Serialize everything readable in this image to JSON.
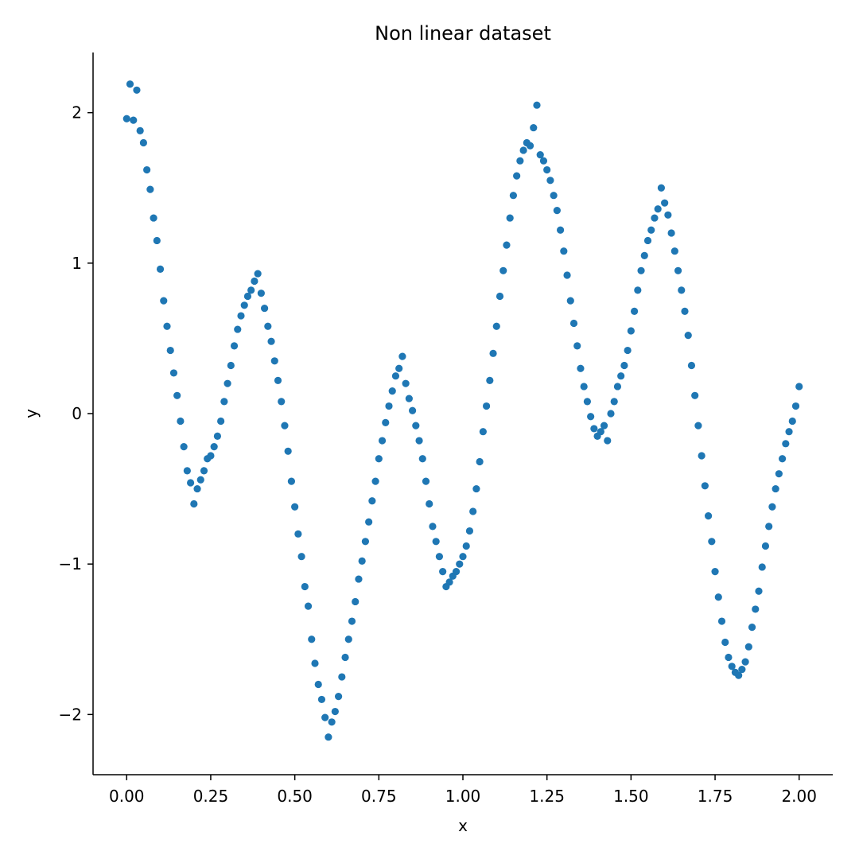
{
  "chart_data": {
    "type": "scatter",
    "title": "Non linear dataset",
    "xlabel": "x",
    "ylabel": "y",
    "xlim": [
      -0.1,
      2.1
    ],
    "ylim": [
      -2.4,
      2.4
    ],
    "xticks": [
      0.0,
      0.25,
      0.5,
      0.75,
      1.0,
      1.25,
      1.5,
      1.75,
      2.0
    ],
    "xtick_labels": [
      "0.00",
      "0.25",
      "0.50",
      "0.75",
      "1.00",
      "1.25",
      "1.50",
      "1.75",
      "2.00"
    ],
    "yticks": [
      -2,
      -1,
      0,
      1,
      2
    ],
    "ytick_labels": [
      "−2",
      "−1",
      "0",
      "1",
      "2"
    ],
    "grid": false,
    "legend": "none",
    "marker_color": "#1f77b4",
    "series": [
      {
        "points": [
          [
            0.0,
            1.96
          ],
          [
            0.01,
            2.19
          ],
          [
            0.02,
            1.95
          ],
          [
            0.03,
            2.15
          ],
          [
            0.04,
            1.88
          ],
          [
            0.05,
            1.8
          ],
          [
            0.06,
            1.62
          ],
          [
            0.07,
            1.49
          ],
          [
            0.08,
            1.3
          ],
          [
            0.09,
            1.15
          ],
          [
            0.1,
            0.96
          ],
          [
            0.11,
            0.75
          ],
          [
            0.12,
            0.58
          ],
          [
            0.13,
            0.42
          ],
          [
            0.14,
            0.27
          ],
          [
            0.15,
            0.12
          ],
          [
            0.16,
            -0.05
          ],
          [
            0.17,
            -0.22
          ],
          [
            0.18,
            -0.38
          ],
          [
            0.19,
            -0.46
          ],
          [
            0.2,
            -0.6
          ],
          [
            0.21,
            -0.5
          ],
          [
            0.22,
            -0.44
          ],
          [
            0.23,
            -0.38
          ],
          [
            0.24,
            -0.3
          ],
          [
            0.25,
            -0.28
          ],
          [
            0.26,
            -0.22
          ],
          [
            0.27,
            -0.15
          ],
          [
            0.28,
            -0.05
          ],
          [
            0.29,
            0.08
          ],
          [
            0.3,
            0.2
          ],
          [
            0.31,
            0.32
          ],
          [
            0.32,
            0.45
          ],
          [
            0.33,
            0.56
          ],
          [
            0.34,
            0.65
          ],
          [
            0.35,
            0.72
          ],
          [
            0.36,
            0.78
          ],
          [
            0.37,
            0.82
          ],
          [
            0.38,
            0.88
          ],
          [
            0.39,
            0.93
          ],
          [
            0.4,
            0.8
          ],
          [
            0.41,
            0.7
          ],
          [
            0.42,
            0.58
          ],
          [
            0.43,
            0.48
          ],
          [
            0.44,
            0.35
          ],
          [
            0.45,
            0.22
          ],
          [
            0.46,
            0.08
          ],
          [
            0.47,
            -0.08
          ],
          [
            0.48,
            -0.25
          ],
          [
            0.49,
            -0.45
          ],
          [
            0.5,
            -0.62
          ],
          [
            0.51,
            -0.8
          ],
          [
            0.52,
            -0.95
          ],
          [
            0.53,
            -1.15
          ],
          [
            0.54,
            -1.28
          ],
          [
            0.55,
            -1.5
          ],
          [
            0.56,
            -1.66
          ],
          [
            0.57,
            -1.8
          ],
          [
            0.58,
            -1.9
          ],
          [
            0.59,
            -2.02
          ],
          [
            0.6,
            -2.15
          ],
          [
            0.61,
            -2.05
          ],
          [
            0.62,
            -1.98
          ],
          [
            0.63,
            -1.88
          ],
          [
            0.64,
            -1.75
          ],
          [
            0.65,
            -1.62
          ],
          [
            0.66,
            -1.5
          ],
          [
            0.67,
            -1.38
          ],
          [
            0.68,
            -1.25
          ],
          [
            0.69,
            -1.1
          ],
          [
            0.7,
            -0.98
          ],
          [
            0.71,
            -0.85
          ],
          [
            0.72,
            -0.72
          ],
          [
            0.73,
            -0.58
          ],
          [
            0.74,
            -0.45
          ],
          [
            0.75,
            -0.3
          ],
          [
            0.76,
            -0.18
          ],
          [
            0.77,
            -0.06
          ],
          [
            0.78,
            0.05
          ],
          [
            0.79,
            0.15
          ],
          [
            0.8,
            0.25
          ],
          [
            0.81,
            0.3
          ],
          [
            0.82,
            0.38
          ],
          [
            0.83,
            0.2
          ],
          [
            0.84,
            0.1
          ],
          [
            0.85,
            0.02
          ],
          [
            0.86,
            -0.08
          ],
          [
            0.87,
            -0.18
          ],
          [
            0.88,
            -0.3
          ],
          [
            0.89,
            -0.45
          ],
          [
            0.9,
            -0.6
          ],
          [
            0.91,
            -0.75
          ],
          [
            0.92,
            -0.85
          ],
          [
            0.93,
            -0.95
          ],
          [
            0.94,
            -1.05
          ],
          [
            0.95,
            -1.15
          ],
          [
            0.96,
            -1.12
          ],
          [
            0.97,
            -1.08
          ],
          [
            0.98,
            -1.05
          ],
          [
            0.99,
            -1.0
          ],
          [
            1.0,
            -0.95
          ],
          [
            1.01,
            -0.88
          ],
          [
            1.02,
            -0.78
          ],
          [
            1.03,
            -0.65
          ],
          [
            1.04,
            -0.5
          ],
          [
            1.05,
            -0.32
          ],
          [
            1.06,
            -0.12
          ],
          [
            1.07,
            0.05
          ],
          [
            1.08,
            0.22
          ],
          [
            1.09,
            0.4
          ],
          [
            1.1,
            0.58
          ],
          [
            1.11,
            0.78
          ],
          [
            1.12,
            0.95
          ],
          [
            1.13,
            1.12
          ],
          [
            1.14,
            1.3
          ],
          [
            1.15,
            1.45
          ],
          [
            1.16,
            1.58
          ],
          [
            1.17,
            1.68
          ],
          [
            1.18,
            1.75
          ],
          [
            1.19,
            1.8
          ],
          [
            1.2,
            1.78
          ],
          [
            1.21,
            1.9
          ],
          [
            1.22,
            2.05
          ],
          [
            1.23,
            1.72
          ],
          [
            1.24,
            1.68
          ],
          [
            1.25,
            1.62
          ],
          [
            1.26,
            1.55
          ],
          [
            1.27,
            1.45
          ],
          [
            1.28,
            1.35
          ],
          [
            1.29,
            1.22
          ],
          [
            1.3,
            1.08
          ],
          [
            1.31,
            0.92
          ],
          [
            1.32,
            0.75
          ],
          [
            1.33,
            0.6
          ],
          [
            1.34,
            0.45
          ],
          [
            1.35,
            0.3
          ],
          [
            1.36,
            0.18
          ],
          [
            1.37,
            0.08
          ],
          [
            1.38,
            -0.02
          ],
          [
            1.39,
            -0.1
          ],
          [
            1.4,
            -0.15
          ],
          [
            1.41,
            -0.12
          ],
          [
            1.42,
            -0.08
          ],
          [
            1.43,
            -0.18
          ],
          [
            1.44,
            0.0
          ],
          [
            1.45,
            0.08
          ],
          [
            1.46,
            0.18
          ],
          [
            1.47,
            0.25
          ],
          [
            1.48,
            0.32
          ],
          [
            1.49,
            0.42
          ],
          [
            1.5,
            0.55
          ],
          [
            1.51,
            0.68
          ],
          [
            1.52,
            0.82
          ],
          [
            1.53,
            0.95
          ],
          [
            1.54,
            1.05
          ],
          [
            1.55,
            1.15
          ],
          [
            1.56,
            1.22
          ],
          [
            1.57,
            1.3
          ],
          [
            1.58,
            1.36
          ],
          [
            1.59,
            1.5
          ],
          [
            1.6,
            1.4
          ],
          [
            1.61,
            1.32
          ],
          [
            1.62,
            1.2
          ],
          [
            1.63,
            1.08
          ],
          [
            1.64,
            0.95
          ],
          [
            1.65,
            0.82
          ],
          [
            1.66,
            0.68
          ],
          [
            1.67,
            0.52
          ],
          [
            1.68,
            0.32
          ],
          [
            1.69,
            0.12
          ],
          [
            1.7,
            -0.08
          ],
          [
            1.71,
            -0.28
          ],
          [
            1.72,
            -0.48
          ],
          [
            1.73,
            -0.68
          ],
          [
            1.74,
            -0.85
          ],
          [
            1.75,
            -1.05
          ],
          [
            1.76,
            -1.22
          ],
          [
            1.77,
            -1.38
          ],
          [
            1.78,
            -1.52
          ],
          [
            1.79,
            -1.62
          ],
          [
            1.8,
            -1.68
          ],
          [
            1.81,
            -1.72
          ],
          [
            1.82,
            -1.74
          ],
          [
            1.83,
            -1.7
          ],
          [
            1.84,
            -1.65
          ],
          [
            1.85,
            -1.55
          ],
          [
            1.86,
            -1.42
          ],
          [
            1.87,
            -1.3
          ],
          [
            1.88,
            -1.18
          ],
          [
            1.89,
            -1.02
          ],
          [
            1.9,
            -0.88
          ],
          [
            1.91,
            -0.75
          ],
          [
            1.92,
            -0.62
          ],
          [
            1.93,
            -0.5
          ],
          [
            1.94,
            -0.4
          ],
          [
            1.95,
            -0.3
          ],
          [
            1.96,
            -0.2
          ],
          [
            1.97,
            -0.12
          ],
          [
            1.98,
            -0.05
          ],
          [
            1.99,
            0.05
          ],
          [
            2.0,
            0.18
          ]
        ]
      }
    ]
  }
}
